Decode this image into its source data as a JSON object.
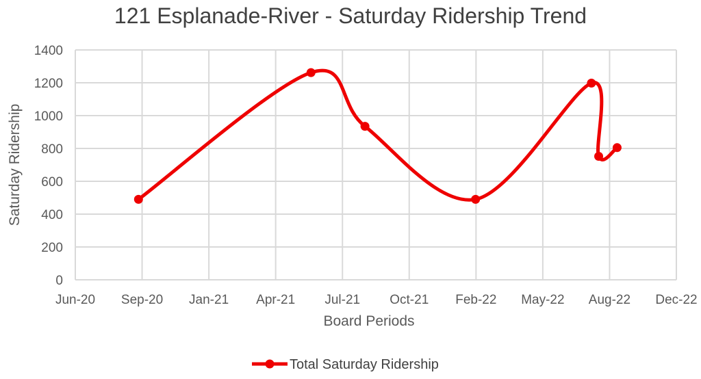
{
  "chart_data": {
    "type": "line",
    "title": "121 Esplanade-River - Saturday Ridership Trend",
    "xlabel": "Board Periods",
    "ylabel": "Saturday  Ridership",
    "x_ticks": [
      "Jun-20",
      "Sep-20",
      "Jan-21",
      "Apr-21",
      "Jul-21",
      "Oct-21",
      "Feb-22",
      "May-22",
      "Aug-22",
      "Dec-22"
    ],
    "y_ticks": [
      0,
      200,
      400,
      600,
      800,
      1000,
      1200,
      1400
    ],
    "ylim": [
      0,
      1400
    ],
    "xlim": [
      "2020-06-01",
      "2022-12-01"
    ],
    "grid": true,
    "legend_position": "bottom",
    "series": [
      {
        "name": "Total Saturday Ridership",
        "color": "#ee0000",
        "smooth": true,
        "marker": "circle",
        "points": [
          {
            "x": "2020-09-05",
            "y": 490
          },
          {
            "x": "2021-05-25",
            "y": 1262
          },
          {
            "x": "2021-08-15",
            "y": 935
          },
          {
            "x": "2022-01-30",
            "y": 490
          },
          {
            "x": "2022-07-25",
            "y": 1198
          },
          {
            "x": "2022-08-05",
            "y": 752
          },
          {
            "x": "2022-09-02",
            "y": 805
          }
        ]
      }
    ]
  }
}
